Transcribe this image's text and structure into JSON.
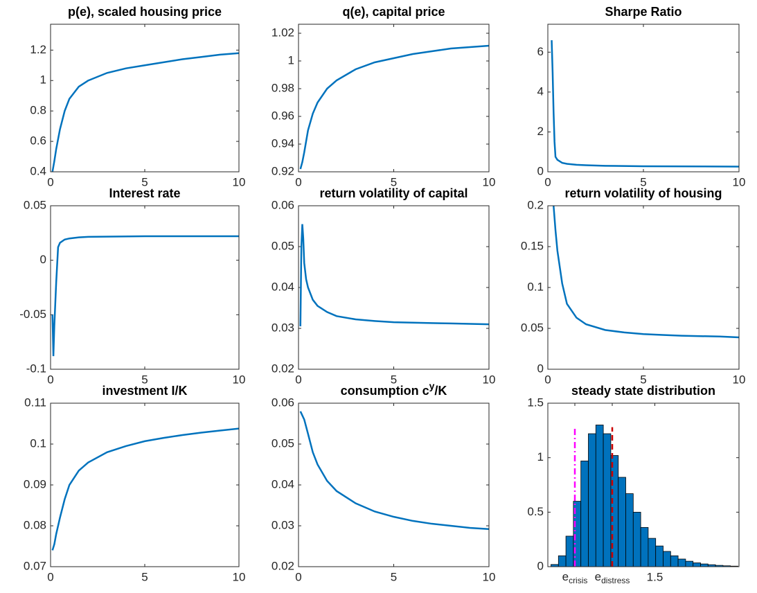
{
  "chart_data": [
    {
      "type": "line",
      "title": "p(e), scaled housing price",
      "xlim": [
        0,
        10
      ],
      "xticks": [
        0,
        5,
        10
      ],
      "ylim": [
        0.4,
        1.37
      ],
      "yticks": [
        0.4,
        0.6,
        0.8,
        1,
        1.2
      ],
      "color": "#0072bd",
      "x": [
        0.1,
        0.2,
        0.3,
        0.5,
        0.75,
        1,
        1.5,
        2,
        3,
        4,
        5,
        6,
        7,
        8,
        9,
        10
      ],
      "values": [
        0.4,
        0.47,
        0.55,
        0.68,
        0.8,
        0.88,
        0.96,
        1.0,
        1.05,
        1.08,
        1.1,
        1.12,
        1.14,
        1.155,
        1.17,
        1.18
      ]
    },
    {
      "type": "line",
      "title": "q(e), capital price",
      "xlim": [
        0,
        10
      ],
      "xticks": [
        0,
        5,
        10
      ],
      "ylim": [
        0.92,
        1.0265
      ],
      "yticks": [
        0.92,
        0.94,
        0.96,
        0.98,
        1,
        1.02
      ],
      "color": "#0072bd",
      "x": [
        0.1,
        0.2,
        0.3,
        0.5,
        0.75,
        1,
        1.5,
        2,
        3,
        4,
        5,
        6,
        7,
        8,
        9,
        10
      ],
      "values": [
        0.922,
        0.927,
        0.934,
        0.95,
        0.962,
        0.97,
        0.98,
        0.986,
        0.994,
        0.999,
        1.002,
        1.005,
        1.007,
        1.009,
        1.01,
        1.011
      ]
    },
    {
      "type": "line",
      "title": "Sharpe Ratio",
      "xlim": [
        0,
        10
      ],
      "xticks": [
        0,
        5,
        10
      ],
      "ylim": [
        0,
        7.4
      ],
      "yticks": [
        0,
        2,
        4,
        6
      ],
      "color": "#0072bd",
      "x": [
        0.2,
        0.25,
        0.3,
        0.35,
        0.4,
        0.5,
        0.75,
        1,
        1.5,
        2,
        3,
        5,
        10
      ],
      "values": [
        6.6,
        5.0,
        3.0,
        1.5,
        0.75,
        0.6,
        0.45,
        0.4,
        0.35,
        0.33,
        0.3,
        0.28,
        0.26
      ]
    },
    {
      "type": "line",
      "title": "Interest rate",
      "xlim": [
        0,
        10
      ],
      "xticks": [
        0,
        5,
        10
      ],
      "ylim": [
        -0.1,
        0.05
      ],
      "yticks": [
        -0.1,
        -0.05,
        0,
        0.05
      ],
      "color": "#0072bd",
      "x": [
        0.1,
        0.15,
        0.2,
        0.3,
        0.4,
        0.5,
        0.75,
        1,
        1.5,
        2,
        5,
        10
      ],
      "values": [
        -0.05,
        -0.088,
        -0.06,
        -0.02,
        0.012,
        0.016,
        0.019,
        0.02,
        0.021,
        0.0215,
        0.022,
        0.022
      ]
    },
    {
      "type": "line",
      "title": "return volatility of capital",
      "xlim": [
        0,
        10
      ],
      "xticks": [
        0,
        5,
        10
      ],
      "ylim": [
        0.02,
        0.06
      ],
      "yticks": [
        0.02,
        0.03,
        0.04,
        0.05,
        0.06
      ],
      "color": "#0072bd",
      "x": [
        0.1,
        0.15,
        0.2,
        0.25,
        0.3,
        0.4,
        0.5,
        0.75,
        1,
        1.5,
        2,
        3,
        4,
        5,
        6,
        7,
        8,
        9,
        10
      ],
      "values": [
        0.0305,
        0.05,
        0.0555,
        0.052,
        0.046,
        0.042,
        0.04,
        0.037,
        0.0355,
        0.034,
        0.033,
        0.0322,
        0.0318,
        0.0315,
        0.0314,
        0.0313,
        0.0312,
        0.0311,
        0.031
      ]
    },
    {
      "type": "line",
      "title": "return volatility of housing",
      "xlim": [
        0,
        10
      ],
      "xticks": [
        0,
        5,
        10
      ],
      "ylim": [
        0,
        0.2
      ],
      "yticks": [
        0,
        0.05,
        0.1,
        0.15,
        0.2
      ],
      "color": "#0072bd",
      "x": [
        0.3,
        0.4,
        0.5,
        0.75,
        1,
        1.5,
        2,
        3,
        4,
        5,
        6,
        7,
        8,
        9,
        10
      ],
      "values": [
        0.2,
        0.17,
        0.145,
        0.105,
        0.08,
        0.063,
        0.055,
        0.048,
        0.045,
        0.043,
        0.042,
        0.041,
        0.0405,
        0.04,
        0.039
      ]
    },
    {
      "type": "line",
      "title": "investment I/K",
      "xlim": [
        0,
        10
      ],
      "xticks": [
        0,
        5,
        10
      ],
      "ylim": [
        0.07,
        0.11
      ],
      "yticks": [
        0.07,
        0.08,
        0.09,
        0.1,
        0.11
      ],
      "color": "#0072bd",
      "x": [
        0.1,
        0.2,
        0.3,
        0.5,
        0.75,
        1,
        1.5,
        2,
        3,
        4,
        5,
        6,
        7,
        8,
        9,
        10
      ],
      "values": [
        0.074,
        0.0755,
        0.078,
        0.082,
        0.0865,
        0.09,
        0.0935,
        0.0955,
        0.098,
        0.0995,
        0.1007,
        0.1015,
        0.1022,
        0.1028,
        0.1033,
        0.1038
      ]
    },
    {
      "type": "line",
      "title": {
        "text": "consumption c",
        "sup": "y",
        "after": "/K"
      },
      "xlim": [
        0,
        10
      ],
      "xticks": [
        0,
        5,
        10
      ],
      "ylim": [
        0.02,
        0.06
      ],
      "yticks": [
        0.02,
        0.03,
        0.04,
        0.05,
        0.06
      ],
      "color": "#0072bd",
      "x": [
        0.1,
        0.3,
        0.5,
        0.75,
        1,
        1.5,
        2,
        3,
        4,
        5,
        6,
        7,
        8,
        9,
        10
      ],
      "values": [
        0.058,
        0.056,
        0.0525,
        0.048,
        0.045,
        0.041,
        0.0385,
        0.0355,
        0.0335,
        0.0322,
        0.0312,
        0.0305,
        0.03,
        0.0295,
        0.0292
      ]
    },
    {
      "type": "histogram",
      "title": "steady state distribution",
      "xlim": [
        0.47,
        2.31
      ],
      "xticks": [
        {
          "value": 0.73,
          "label": "e",
          "subscript": "crisis"
        },
        {
          "value": 1.09,
          "label": "e",
          "subscript": "distress"
        },
        1.5
      ],
      "ylim": [
        0,
        1.5
      ],
      "yticks": [
        0,
        0.5,
        1,
        1.5
      ],
      "color": "#0072bd",
      "edgecolor": "#000000",
      "bins": [
        0.5,
        0.572,
        0.644,
        0.716,
        0.788,
        0.86,
        0.932,
        1.004,
        1.076,
        1.148,
        1.22,
        1.292,
        1.364,
        1.436,
        1.508,
        1.58,
        1.652,
        1.724,
        1.796,
        1.868,
        1.94,
        2.012,
        2.084,
        2.156,
        2.228,
        2.3
      ],
      "values": [
        0.02,
        0.1,
        0.28,
        0.6,
        0.97,
        1.22,
        1.3,
        1.22,
        1.02,
        0.82,
        0.67,
        0.5,
        0.36,
        0.26,
        0.19,
        0.14,
        0.1,
        0.07,
        0.05,
        0.035,
        0.025,
        0.018,
        0.012,
        0.008,
        0.005
      ],
      "vlines": [
        {
          "x": 0.73,
          "top": 1.28,
          "color": "#ff00ff",
          "style": "dashdot"
        },
        {
          "x": 1.09,
          "top": 1.28,
          "color": "#cc0000",
          "style": "dashed"
        }
      ]
    }
  ]
}
